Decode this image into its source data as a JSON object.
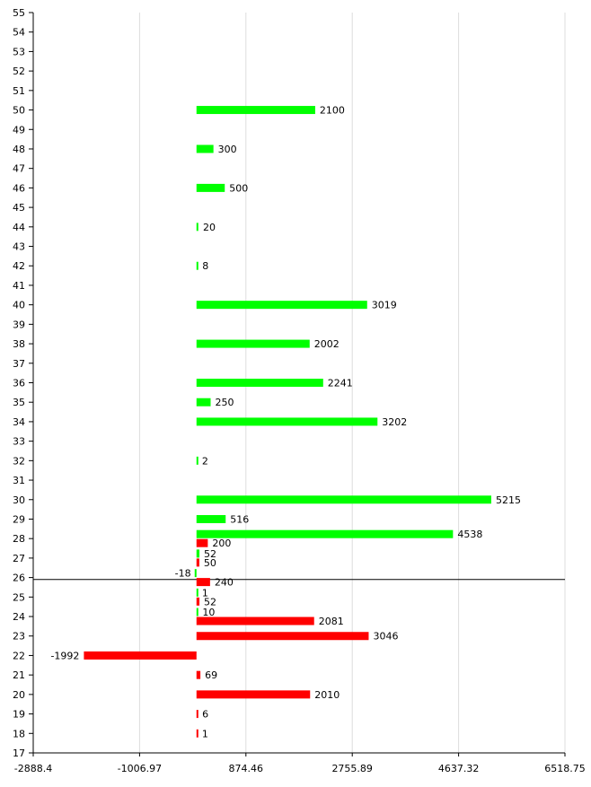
{
  "chart_data": {
    "type": "bar",
    "orientation": "horizontal",
    "title": "",
    "xlabel": "",
    "ylabel": "",
    "xlim": [
      -2888.4,
      6518.75
    ],
    "ylim": [
      17,
      55
    ],
    "x_ticks": [
      "-2888.4",
      "-1006.97",
      "874.46",
      "2755.89",
      "4637.32",
      "6518.75"
    ],
    "x_tick_values": [
      -2888.4,
      -1006.97,
      874.46,
      2755.89,
      4637.32,
      6518.75
    ],
    "grid": true,
    "reference_line_y": 25.9,
    "colors": {
      "positive": "#00ff00",
      "negative": "#ff0000"
    },
    "bars": [
      {
        "y": 50,
        "value": 2100,
        "label": "2100",
        "color": "green"
      },
      {
        "y": 48,
        "value": 300,
        "label": "300",
        "color": "green"
      },
      {
        "y": 46,
        "value": 500,
        "label": "500",
        "color": "green"
      },
      {
        "y": 44,
        "value": 20,
        "label": "20",
        "color": "green"
      },
      {
        "y": 42,
        "value": 8,
        "label": "8",
        "color": "green"
      },
      {
        "y": 40,
        "value": 3019,
        "label": "3019",
        "color": "green"
      },
      {
        "y": 38,
        "value": 2002,
        "label": "2002",
        "color": "green"
      },
      {
        "y": 36,
        "value": 2241,
        "label": "2241",
        "color": "green"
      },
      {
        "y": 35,
        "value": 250,
        "label": "250",
        "color": "green"
      },
      {
        "y": 34,
        "value": 3202,
        "label": "3202",
        "color": "green"
      },
      {
        "y": 32,
        "value": 2,
        "label": "2",
        "color": "green"
      },
      {
        "y": 30,
        "value": 5215,
        "label": "5215",
        "color": "green"
      },
      {
        "y": 29,
        "value": 516,
        "label": "516",
        "color": "green"
      },
      {
        "y": 28,
        "value": 4538,
        "label": "4538",
        "color": "green"
      },
      {
        "y": 28,
        "value": 200,
        "label": "200",
        "color": "red"
      },
      {
        "y": 27,
        "value": 52,
        "label": "52",
        "color": "green"
      },
      {
        "y": 27,
        "value": 50,
        "label": "50",
        "color": "red"
      },
      {
        "y": 26,
        "value": -18,
        "label": "-18",
        "color": "green"
      },
      {
        "y": 26,
        "value": 240,
        "label": "240",
        "color": "red"
      },
      {
        "y": 25,
        "value": 1,
        "label": "1",
        "color": "green"
      },
      {
        "y": 25,
        "value": 52,
        "label": "52",
        "color": "red"
      },
      {
        "y": 24,
        "value": 10,
        "label": "10",
        "color": "green"
      },
      {
        "y": 24,
        "value": 2081,
        "label": "2081",
        "color": "red"
      },
      {
        "y": 23,
        "value": 3046,
        "label": "3046",
        "color": "red"
      },
      {
        "y": 22,
        "value": -1992,
        "label": "-1992",
        "color": "red"
      },
      {
        "y": 21,
        "value": 69,
        "label": "69",
        "color": "red"
      },
      {
        "y": 20,
        "value": 2010,
        "label": "2010",
        "color": "red"
      },
      {
        "y": 19,
        "value": 6,
        "label": "6",
        "color": "red"
      },
      {
        "y": 18,
        "value": 1,
        "label": "1",
        "color": "red"
      }
    ]
  }
}
